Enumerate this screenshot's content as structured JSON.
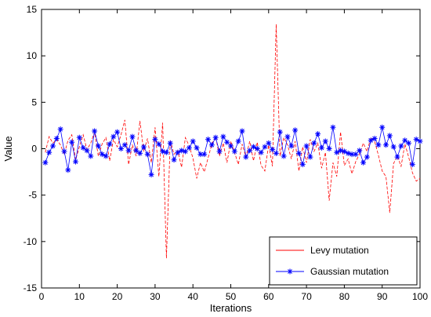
{
  "chart_data": {
    "type": "line",
    "title": "",
    "xlabel": "Iterations",
    "ylabel": "Value",
    "xlim": [
      0,
      100
    ],
    "ylim": [
      -15,
      15
    ],
    "x_ticks": [
      0,
      10,
      20,
      30,
      40,
      50,
      60,
      70,
      80,
      90,
      100
    ],
    "y_ticks": [
      -15,
      -10,
      -5,
      0,
      5,
      10,
      15
    ],
    "grid": false,
    "legend_position": "bottom-right",
    "x": [
      1,
      2,
      3,
      4,
      5,
      6,
      7,
      8,
      9,
      10,
      11,
      12,
      13,
      14,
      15,
      16,
      17,
      18,
      19,
      20,
      21,
      22,
      23,
      24,
      25,
      26,
      27,
      28,
      29,
      30,
      31,
      32,
      33,
      34,
      35,
      36,
      37,
      38,
      39,
      40,
      41,
      42,
      43,
      44,
      45,
      46,
      47,
      48,
      49,
      50,
      51,
      52,
      53,
      54,
      55,
      56,
      57,
      58,
      59,
      60,
      61,
      62,
      63,
      64,
      65,
      66,
      67,
      68,
      69,
      70,
      71,
      72,
      73,
      74,
      75,
      76,
      77,
      78,
      79,
      80,
      81,
      82,
      83,
      84,
      85,
      86,
      87,
      88,
      89,
      90,
      91,
      92,
      93,
      94,
      95,
      96,
      97,
      98,
      99,
      100
    ],
    "series": [
      {
        "name": "Levy mutation",
        "color": "#ff0000",
        "line_style": "dashed",
        "marker": "none",
        "values": [
          -0.4,
          1.3,
          0.6,
          1.0,
          0.4,
          -0.6,
          0.9,
          1.5,
          -1.2,
          0.2,
          1.5,
          -0.1,
          0.6,
          1.8,
          -0.8,
          0.5,
          1.2,
          -1.3,
          1.0,
          0.2,
          1.5,
          3.1,
          -1.7,
          0.4,
          -0.8,
          3.0,
          -0.3,
          1.1,
          -1.5,
          2.3,
          -3.0,
          2.8,
          -11.8,
          0.9,
          -0.6,
          -0.2,
          -2.0,
          1.2,
          0.3,
          -1.0,
          -3.2,
          -1.5,
          -2.5,
          -1.0,
          0.5,
          1.3,
          -0.8,
          0.6,
          -1.5,
          0.8,
          -0.4,
          -1.7,
          0.5,
          -0.9,
          0.8,
          -1.3,
          0.7,
          -1.8,
          -2.4,
          0.4,
          -1.9,
          13.4,
          -0.8,
          1.2,
          0.4,
          -1.1,
          0.8,
          -2.4,
          0.2,
          -1.5,
          1.0,
          -0.3,
          0.6,
          -2.1,
          -0.4,
          -5.6,
          -1.5,
          -3.0,
          1.8,
          -1.8,
          -1.1,
          -2.7,
          -1.4,
          -0.6,
          0.6,
          -0.3,
          1.2,
          0.8,
          -0.7,
          -2.4,
          -3.0,
          -6.9,
          -1.6,
          -0.8,
          -1.9,
          0.5,
          -0.9,
          -2.6,
          -3.5,
          -3.2
        ]
      },
      {
        "name": "Gaussian mutation",
        "color": "#0000ff",
        "line_style": "solid",
        "marker": "star",
        "values": [
          -1.5,
          -0.4,
          0.3,
          1.1,
          2.1,
          -0.3,
          -2.3,
          0.7,
          -1.4,
          1.2,
          0.1,
          -0.2,
          -0.8,
          1.9,
          0.3,
          -0.6,
          -0.8,
          0.5,
          1.3,
          1.8,
          0.0,
          0.4,
          -0.2,
          1.3,
          -0.2,
          -0.5,
          0.2,
          -0.6,
          -2.8,
          1.0,
          0.5,
          -0.3,
          -0.4,
          0.6,
          -1.2,
          -0.4,
          -0.2,
          -0.3,
          0.1,
          0.8,
          0.1,
          -0.6,
          -0.6,
          1.0,
          0.4,
          1.2,
          -0.3,
          1.3,
          0.7,
          0.3,
          -0.3,
          0.8,
          1.9,
          -0.9,
          -0.2,
          0.2,
          0.0,
          -0.4,
          0.2,
          0.6,
          -0.1,
          -0.5,
          1.8,
          -0.8,
          1.3,
          0.3,
          2.0,
          -0.5,
          -1.7,
          0.3,
          -0.9,
          0.6,
          1.6,
          0.1,
          0.8,
          0.0,
          2.3,
          -0.4,
          -0.2,
          -0.3,
          -0.5,
          -0.6,
          -0.6,
          -0.2,
          -1.5,
          -0.9,
          0.9,
          1.1,
          0.4,
          2.3,
          0.4,
          1.4,
          0.2,
          -0.9,
          0.3,
          0.9,
          0.6,
          -1.7,
          1.0,
          0.8
        ]
      }
    ]
  }
}
